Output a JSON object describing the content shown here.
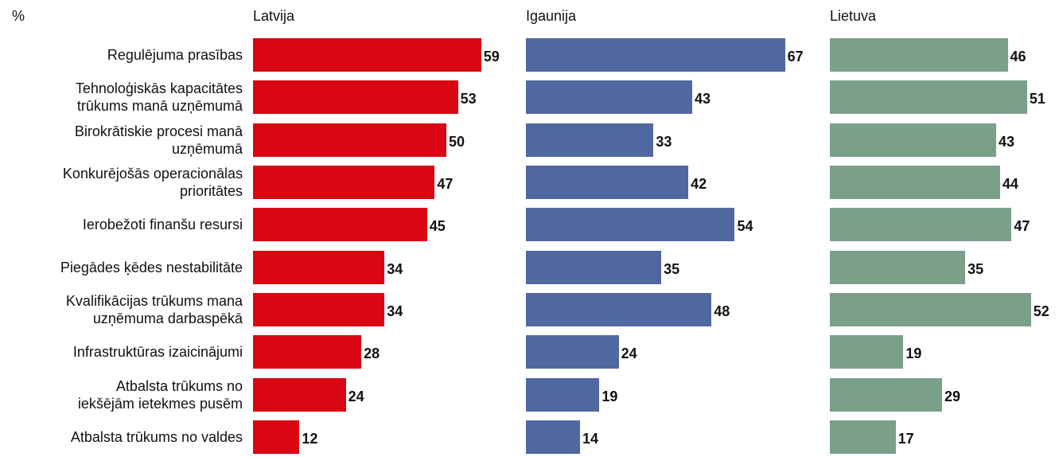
{
  "chart_data": {
    "type": "bar",
    "orientation": "horizontal",
    "unit_label": "%",
    "categories": [
      "Regulējuma prasības",
      "Tehnoloģiskās kapacitātes\ntrūkums manā uzņēmumā",
      "Birokrātiskie procesi manā\nuzņēmumā",
      "Konkurējošās operacionālas\nprioritātes",
      "Ierobežoti finanšu resursi",
      "Piegādes ķēdes nestabilitāte",
      "Kvalifikācijas trūkums mana\nuzņēmuma darbaspēkā",
      "Infrastruktūras izaicinājumi",
      "Atbalsta trūkums no\niekšējām ietekmes pusēm",
      "Atbalsta trūkums no valdes"
    ],
    "series": [
      {
        "name": "Latvija",
        "color": "#d90612",
        "values": [
          59,
          53,
          50,
          47,
          45,
          34,
          34,
          28,
          24,
          12
        ]
      },
      {
        "name": "Igaunija",
        "color": "#5068a0",
        "values": [
          67,
          43,
          33,
          42,
          54,
          35,
          48,
          24,
          19,
          14
        ]
      },
      {
        "name": "Lietuva",
        "color": "#7ba08a",
        "values": [
          46,
          51,
          43,
          44,
          47,
          35,
          52,
          19,
          29,
          17
        ]
      }
    ]
  }
}
